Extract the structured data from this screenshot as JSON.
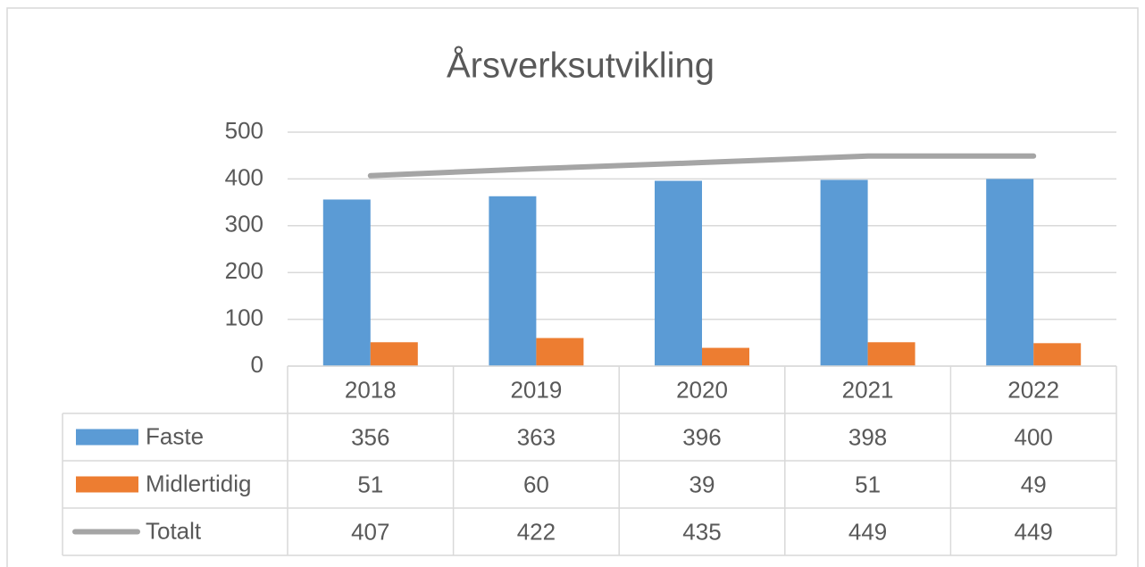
{
  "chart_data": {
    "type": "bar",
    "title": "Årsverksutvikling",
    "categories": [
      "2018",
      "2019",
      "2020",
      "2021",
      "2022"
    ],
    "series": [
      {
        "name": "Faste",
        "color": "#5b9bd5",
        "values": [
          356,
          363,
          396,
          398,
          400
        ]
      },
      {
        "name": "Midlertidig",
        "color": "#ed7d31",
        "values": [
          51,
          60,
          39,
          51,
          49
        ]
      },
      {
        "name": "Totalt",
        "color": "#a5a5a5",
        "type": "line",
        "values": [
          407,
          422,
          435,
          449,
          449
        ]
      }
    ],
    "ylim": [
      0,
      500
    ],
    "yticks": [
      0,
      100,
      200,
      300,
      400,
      500
    ],
    "grid": true
  }
}
